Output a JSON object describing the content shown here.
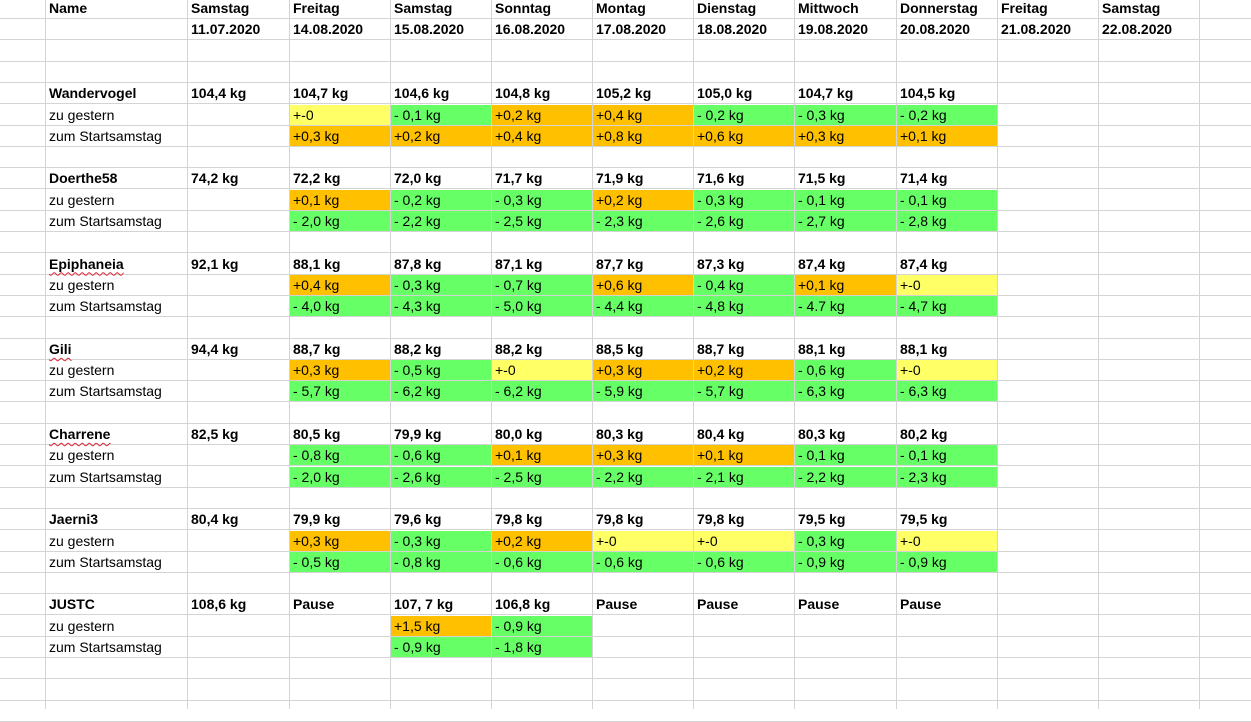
{
  "header": {
    "name_label": "Name",
    "days": [
      {
        "day": "Samstag",
        "date": "11.07.2020"
      },
      {
        "day": "Freitag",
        "date": "14.08.2020"
      },
      {
        "day": "Samstag",
        "date": "15.08.2020"
      },
      {
        "day": "Sonntag",
        "date": "16.08.2020"
      },
      {
        "day": "Montag",
        "date": "17.08.2020"
      },
      {
        "day": "Dienstag",
        "date": "18.08.2020"
      },
      {
        "day": "Mittwoch",
        "date": "19.08.2020"
      },
      {
        "day": "Donnerstag",
        "date": "20.08.2020"
      },
      {
        "day": "Freitag",
        "date": "21.08.2020"
      },
      {
        "day": "Samstag",
        "date": "22.08.2020"
      }
    ]
  },
  "colors": {
    "yellow": "#ffff66",
    "orange": "#ffc000",
    "green": "#66ff66",
    "grid": "#d4d4d4"
  },
  "participants": [
    {
      "name": "Wandervogel",
      "spellcheck": false,
      "start": "104,4 kg",
      "weights": [
        "104,7 kg",
        "104,6 kg",
        "104,8 kg",
        "105,2 kg",
        "105,0 kg",
        "104,7 kg",
        "104,5 kg"
      ],
      "vs_yesterday_label": "zu gestern",
      "vs_yesterday": [
        {
          "v": "+-0",
          "c": "yellow"
        },
        {
          "v": "- 0,1 kg",
          "c": "green"
        },
        {
          "v": "+0,2 kg",
          "c": "orange"
        },
        {
          "v": "+0,4 kg",
          "c": "orange"
        },
        {
          "v": "- 0,2 kg",
          "c": "green"
        },
        {
          "v": "- 0,3 kg",
          "c": "green"
        },
        {
          "v": "- 0,2 kg",
          "c": "green"
        }
      ],
      "vs_start_label": "zum Startsamstag",
      "vs_start": [
        {
          "v": "+0,3 kg",
          "c": "orange"
        },
        {
          "v": "+0,2 kg",
          "c": "orange"
        },
        {
          "v": "+0,4 kg",
          "c": "orange"
        },
        {
          "v": "+0,8 kg",
          "c": "orange"
        },
        {
          "v": "+0,6 kg",
          "c": "orange"
        },
        {
          "v": "+0,3 kg",
          "c": "orange"
        },
        {
          "v": "+0,1 kg",
          "c": "orange"
        }
      ]
    },
    {
      "name": "Doerthe58",
      "spellcheck": false,
      "start": "74,2 kg",
      "weights": [
        "72,2 kg",
        "72,0 kg",
        "71,7 kg",
        "71,9 kg",
        "71,6 kg",
        "71,5 kg",
        "71,4 kg"
      ],
      "vs_yesterday_label": "zu gestern",
      "vs_yesterday": [
        {
          "v": "+0,1 kg",
          "c": "orange"
        },
        {
          "v": "- 0,2 kg",
          "c": "green"
        },
        {
          "v": "- 0,3 kg",
          "c": "green"
        },
        {
          "v": "+0,2 kg",
          "c": "orange"
        },
        {
          "v": "- 0,3 kg",
          "c": "green"
        },
        {
          "v": "- 0,1 kg",
          "c": "green"
        },
        {
          "v": "- 0,1 kg",
          "c": "green"
        }
      ],
      "vs_start_label": "zum Startsamstag",
      "vs_start": [
        {
          "v": "- 2,0 kg",
          "c": "green"
        },
        {
          "v": "- 2,2 kg",
          "c": "green"
        },
        {
          "v": "- 2,5 kg",
          "c": "green"
        },
        {
          "v": "- 2,3 kg",
          "c": "green"
        },
        {
          "v": "- 2,6 kg",
          "c": "green"
        },
        {
          "v": "- 2,7 kg",
          "c": "green"
        },
        {
          "v": "- 2,8 kg",
          "c": "green"
        }
      ]
    },
    {
      "name": "Epiphaneia",
      "spellcheck": true,
      "start": "92,1 kg",
      "weights": [
        "88,1 kg",
        "87,8 kg",
        "87,1 kg",
        "87,7 kg",
        "87,3 kg",
        "87,4 kg",
        "87,4 kg"
      ],
      "vs_yesterday_label": "zu gestern",
      "vs_yesterday": [
        {
          "v": "+0,4 kg",
          "c": "orange"
        },
        {
          "v": "- 0,3 kg",
          "c": "green"
        },
        {
          "v": "- 0,7 kg",
          "c": "green"
        },
        {
          "v": "+0,6 kg",
          "c": "orange"
        },
        {
          "v": "- 0,4 kg",
          "c": "green"
        },
        {
          "v": "+0,1 kg",
          "c": "orange"
        },
        {
          "v": "+-0",
          "c": "yellow"
        }
      ],
      "vs_start_label": "zum Startsamstag",
      "vs_start": [
        {
          "v": "- 4,0 kg",
          "c": "green"
        },
        {
          "v": "- 4,3 kg",
          "c": "green"
        },
        {
          "v": "- 5,0 kg",
          "c": "green"
        },
        {
          "v": "- 4,4 kg",
          "c": "green"
        },
        {
          "v": "- 4,8 kg",
          "c": "green"
        },
        {
          "v": "- 4.7 kg",
          "c": "green"
        },
        {
          "v": "- 4,7 kg",
          "c": "green"
        }
      ]
    },
    {
      "name": "Gili",
      "spellcheck": true,
      "start": "94,4 kg",
      "weights": [
        "88,7 kg",
        "88,2 kg",
        "88,2 kg",
        "88,5 kg",
        "88,7 kg",
        "88,1 kg",
        "88,1 kg"
      ],
      "vs_yesterday_label": "zu gestern",
      "vs_yesterday": [
        {
          "v": "+0,3 kg",
          "c": "orange"
        },
        {
          "v": "- 0,5 kg",
          "c": "green"
        },
        {
          "v": "+-0",
          "c": "yellow"
        },
        {
          "v": "+0,3 kg",
          "c": "orange"
        },
        {
          "v": "+0,2 kg",
          "c": "orange"
        },
        {
          "v": "- 0,6 kg",
          "c": "green"
        },
        {
          "v": "+-0",
          "c": "yellow"
        }
      ],
      "vs_start_label": "zum Startsamstag",
      "vs_start": [
        {
          "v": "- 5,7 kg",
          "c": "green"
        },
        {
          "v": "- 6,2 kg",
          "c": "green"
        },
        {
          "v": "- 6,2 kg",
          "c": "green"
        },
        {
          "v": "- 5,9 kg",
          "c": "green"
        },
        {
          "v": "- 5,7 kg",
          "c": "green"
        },
        {
          "v": "- 6,3 kg",
          "c": "green"
        },
        {
          "v": "- 6,3 kg",
          "c": "green"
        }
      ]
    },
    {
      "name": "Charrene",
      "spellcheck": true,
      "start": "82,5 kg",
      "weights": [
        "80,5 kg",
        "79,9 kg",
        "80,0 kg",
        "80,3 kg",
        "80,4 kg",
        "80,3 kg",
        "80,2 kg"
      ],
      "vs_yesterday_label": "zu gestern",
      "vs_yesterday": [
        {
          "v": "- 0,8 kg",
          "c": "green"
        },
        {
          "v": "- 0,6 kg",
          "c": "green"
        },
        {
          "v": "+0,1 kg",
          "c": "orange"
        },
        {
          "v": "+0,3 kg",
          "c": "orange"
        },
        {
          "v": "+0,1 kg",
          "c": "orange"
        },
        {
          "v": "- 0,1 kg",
          "c": "green"
        },
        {
          "v": "- 0,1 kg",
          "c": "green"
        }
      ],
      "vs_start_label": "zum Startsamstag",
      "vs_start": [
        {
          "v": "- 2,0 kg",
          "c": "green"
        },
        {
          "v": "- 2,6 kg",
          "c": "green"
        },
        {
          "v": "- 2,5 kg",
          "c": "green"
        },
        {
          "v": "- 2,2 kg",
          "c": "green"
        },
        {
          "v": "- 2,1 kg",
          "c": "green"
        },
        {
          "v": "- 2,2 kg",
          "c": "green"
        },
        {
          "v": "- 2,3 kg",
          "c": "green"
        }
      ]
    },
    {
      "name": "Jaerni3",
      "spellcheck": false,
      "start": "80,4 kg",
      "weights": [
        "79,9 kg",
        "79,6 kg",
        "79,8 kg",
        "79,8 kg",
        "79,8 kg",
        "79,5 kg",
        "79,5 kg"
      ],
      "vs_yesterday_label": "zu gestern",
      "vs_yesterday": [
        {
          "v": "+0,3 kg",
          "c": "orange"
        },
        {
          "v": "- 0,3 kg",
          "c": "green"
        },
        {
          "v": "+0,2 kg",
          "c": "orange"
        },
        {
          "v": "+-0",
          "c": "yellow"
        },
        {
          "v": "+-0",
          "c": "yellow"
        },
        {
          "v": "- 0,3 kg",
          "c": "green"
        },
        {
          "v": "+-0",
          "c": "yellow"
        }
      ],
      "vs_start_label": "zum Startsamstag",
      "vs_start": [
        {
          "v": "- 0,5 kg",
          "c": "green"
        },
        {
          "v": "- 0,8 kg",
          "c": "green"
        },
        {
          "v": "- 0,6 kg",
          "c": "green"
        },
        {
          "v": "- 0,6 kg",
          "c": "green"
        },
        {
          "v": "- 0,6 kg",
          "c": "green"
        },
        {
          "v": "- 0,9 kg",
          "c": "green"
        },
        {
          "v": "- 0,9 kg",
          "c": "green"
        }
      ]
    },
    {
      "name": "JUSTC",
      "spellcheck": false,
      "start": "108,6 kg",
      "weights": [
        "Pause",
        "107, 7 kg",
        "106,8 kg",
        "Pause",
        "Pause",
        "Pause",
        "Pause"
      ],
      "vs_yesterday_label": "zu gestern",
      "vs_yesterday": [
        null,
        {
          "v": "+1,5 kg",
          "c": "orange"
        },
        {
          "v": "- 0,9 kg",
          "c": "green"
        },
        null,
        null,
        null,
        null
      ],
      "vs_start_label": "zum Startsamstag",
      "vs_start": [
        null,
        {
          "v": "- 0,9 kg",
          "c": "green"
        },
        {
          "v": "- 1,8 kg",
          "c": "green"
        },
        null,
        null,
        null,
        null
      ]
    }
  ]
}
